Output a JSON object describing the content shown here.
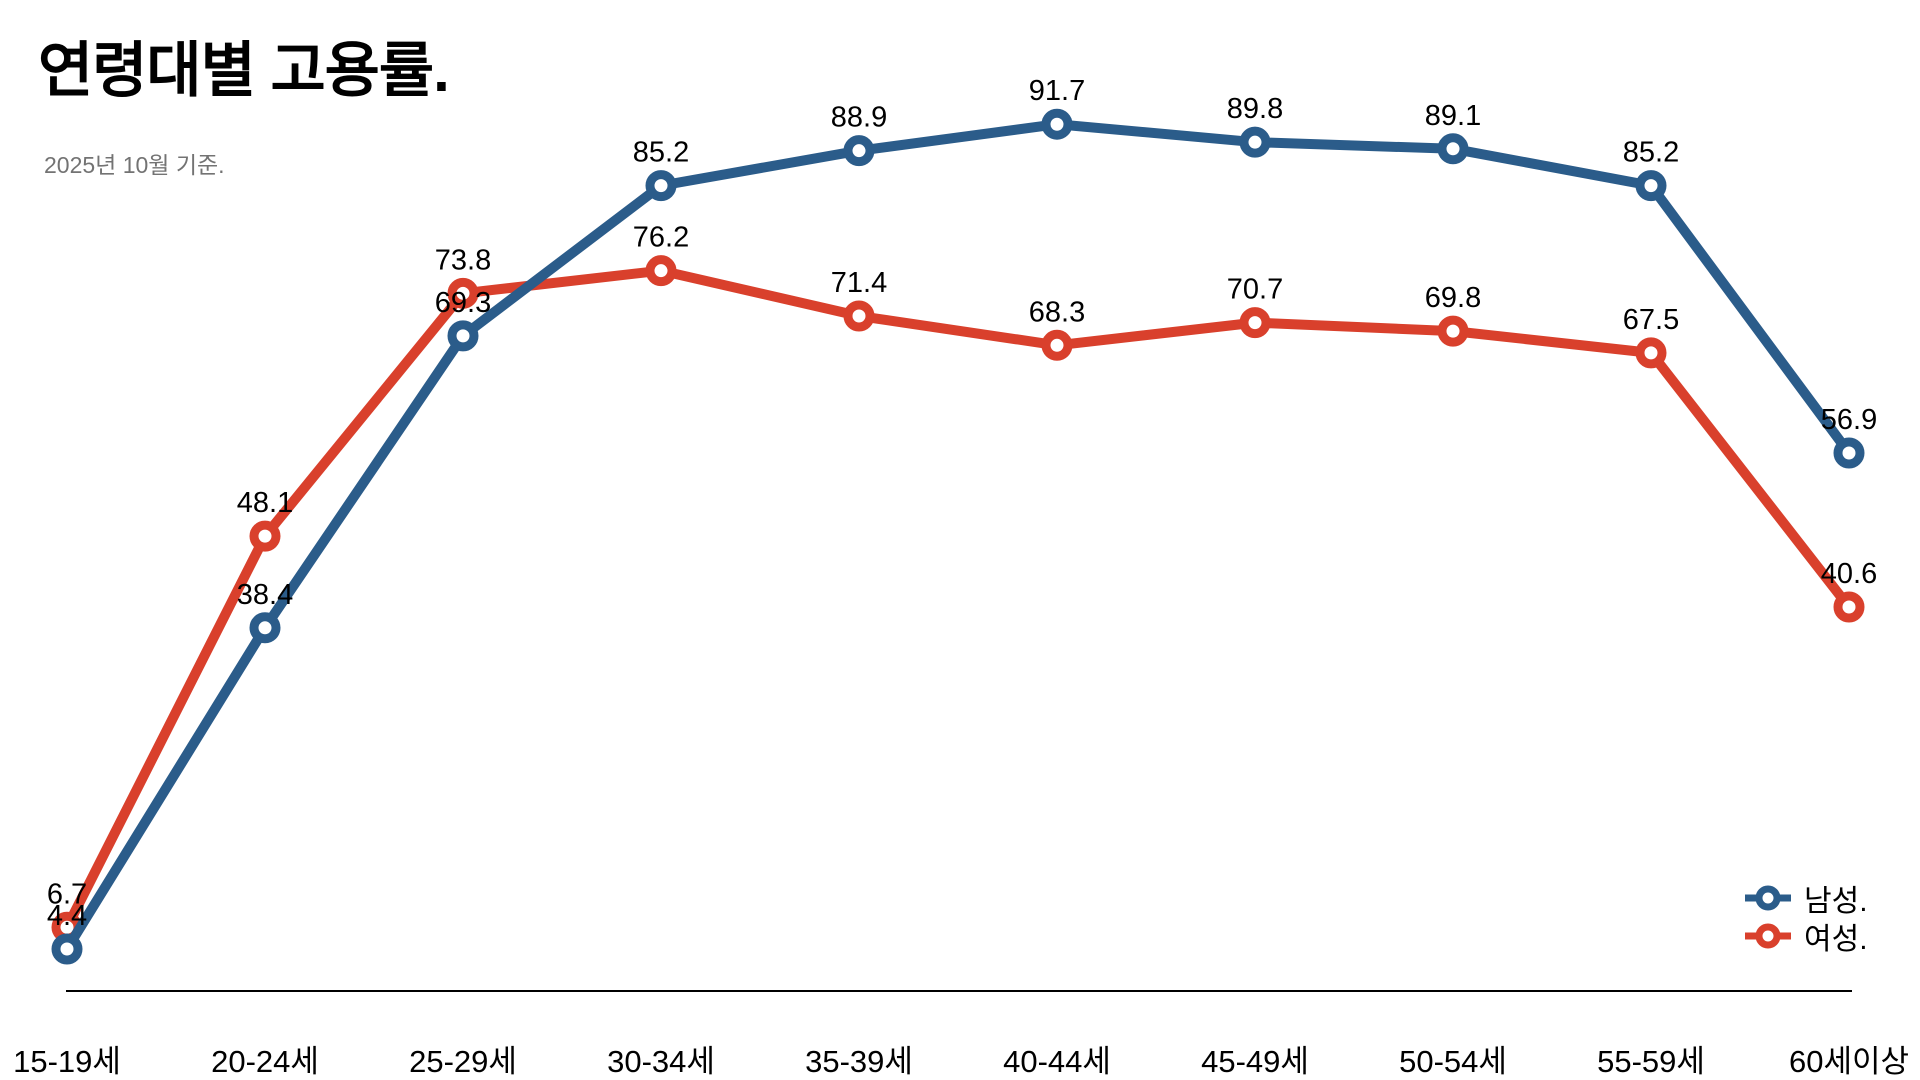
{
  "chart_data": {
    "type": "line",
    "title": "연령대별 고용률.",
    "subtitle": "2025년 10월 기준.",
    "categories": [
      "15-19세",
      "20-24세",
      "25-29세",
      "30-34세",
      "35-39세",
      "40-44세",
      "45-49세",
      "50-54세",
      "55-59세",
      "60세이상"
    ],
    "series": [
      {
        "name": "남성.",
        "color": "#2B5C8A",
        "values": [
          4.4,
          38.4,
          69.3,
          85.2,
          88.9,
          91.7,
          89.8,
          89.1,
          85.2,
          56.9
        ]
      },
      {
        "name": "여성.",
        "color": "#D9402C",
        "values": [
          6.7,
          48.1,
          73.8,
          76.2,
          71.4,
          68.3,
          70.7,
          69.8,
          67.5,
          40.6
        ]
      }
    ],
    "ylim": [
      0,
      100
    ],
    "grid": false,
    "legend_position": "bottom-right",
    "data_labels": true,
    "axis_color": "#000000",
    "label_color": "#000000",
    "subtitle_color": "#737373"
  }
}
